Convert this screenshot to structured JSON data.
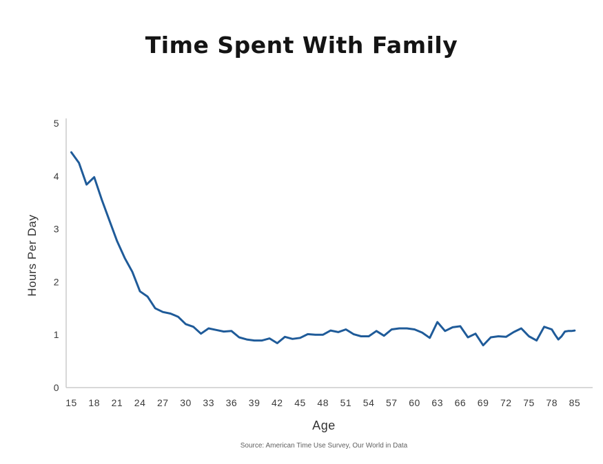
{
  "chart_data": {
    "type": "line",
    "title": "Time Spent With Family",
    "xlabel": "Age",
    "ylabel": "Hours Per Day",
    "source": "Source: American Time Use Survey, Our World in Data",
    "series_name": "hours-per-day-with-family",
    "x": [
      15,
      16,
      17,
      18,
      19,
      20,
      21,
      22,
      23,
      24,
      25,
      26,
      27,
      28,
      29,
      30,
      31,
      32,
      33,
      34,
      35,
      36,
      37,
      38,
      39,
      40,
      41,
      42,
      43,
      44,
      45,
      46,
      47,
      48,
      49,
      50,
      51,
      52,
      53,
      54,
      55,
      56,
      57,
      58,
      59,
      60,
      61,
      62,
      63,
      64,
      65,
      66,
      67,
      68,
      69,
      70,
      71,
      72,
      73,
      74,
      75,
      76,
      77,
      78,
      79,
      80,
      81,
      82,
      83,
      84,
      85
    ],
    "values": [
      4.45,
      4.25,
      3.84,
      3.98,
      3.55,
      3.16,
      2.77,
      2.45,
      2.19,
      1.82,
      1.72,
      1.5,
      1.43,
      1.4,
      1.34,
      1.2,
      1.15,
      1.02,
      1.12,
      1.09,
      1.06,
      1.07,
      0.95,
      0.91,
      0.89,
      0.89,
      0.93,
      0.84,
      0.96,
      0.92,
      0.94,
      1.01,
      1.0,
      1.0,
      1.08,
      1.05,
      1.1,
      1.01,
      0.97,
      0.97,
      1.07,
      0.98,
      1.1,
      1.12,
      1.12,
      1.1,
      1.04,
      0.94,
      1.24,
      1.07,
      1.14,
      1.16,
      0.95,
      1.02,
      0.8,
      0.95,
      0.97,
      0.96,
      1.05,
      1.12,
      0.97,
      0.89,
      1.15,
      1.1,
      1.0,
      0.91,
      0.97,
      1.06,
      1.07,
      1.07,
      1.08
    ],
    "x_tick_labels": [
      "15",
      "18",
      "21",
      "24",
      "27",
      "30",
      "33",
      "36",
      "39",
      "42",
      "45",
      "48",
      "51",
      "54",
      "57",
      "60",
      "63",
      "66",
      "69",
      "72",
      "75",
      "78",
      "85"
    ],
    "y_tick_labels": [
      "0",
      "1",
      "2",
      "3",
      "4",
      "5"
    ],
    "ylim": [
      0,
      5
    ],
    "grid": false,
    "legend": false,
    "line_color": "#1f5b99",
    "axis_color": "#cccccc",
    "text_color": "#3a3a3a"
  }
}
